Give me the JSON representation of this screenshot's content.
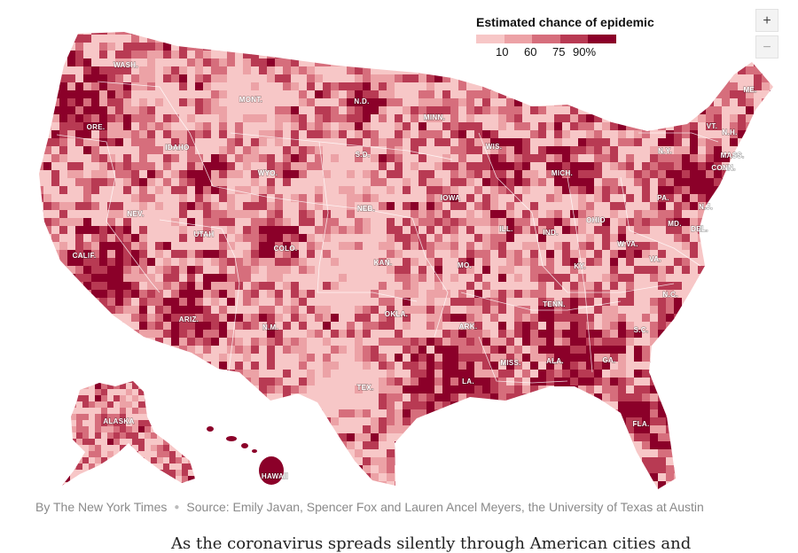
{
  "legend": {
    "title": "Estimated chance of epidemic",
    "ticks": [
      "10",
      "60",
      "75",
      "90%"
    ],
    "colors": [
      "#f7c7c7",
      "#eca2a6",
      "#d66e7c",
      "#b83a53",
      "#8b0029"
    ]
  },
  "zoom": {
    "in_label": "+",
    "out_label": "−"
  },
  "states": [
    {
      "label": "WASH."
    },
    {
      "label": "ORE."
    },
    {
      "label": "CALIF."
    },
    {
      "label": "NEV."
    },
    {
      "label": "IDAHO"
    },
    {
      "label": "MONT."
    },
    {
      "label": "WYO."
    },
    {
      "label": "UTAH"
    },
    {
      "label": "ARIZ."
    },
    {
      "label": "COLO."
    },
    {
      "label": "N.M."
    },
    {
      "label": "N.D."
    },
    {
      "label": "S.D."
    },
    {
      "label": "NEB."
    },
    {
      "label": "KAN."
    },
    {
      "label": "OKLA."
    },
    {
      "label": "TEX."
    },
    {
      "label": "MINN."
    },
    {
      "label": "IOWA"
    },
    {
      "label": "MO."
    },
    {
      "label": "ARK."
    },
    {
      "label": "LA."
    },
    {
      "label": "WIS."
    },
    {
      "label": "ILL."
    },
    {
      "label": "MICH."
    },
    {
      "label": "IND."
    },
    {
      "label": "OHIO"
    },
    {
      "label": "KY."
    },
    {
      "label": "TENN."
    },
    {
      "label": "MISS."
    },
    {
      "label": "ALA."
    },
    {
      "label": "GA."
    },
    {
      "label": "FLA."
    },
    {
      "label": "S.C."
    },
    {
      "label": "N.C."
    },
    {
      "label": "VA."
    },
    {
      "label": "W.VA."
    },
    {
      "label": "PA."
    },
    {
      "label": "N.Y."
    },
    {
      "label": "MD."
    },
    {
      "label": "DEL."
    },
    {
      "label": "N.J."
    },
    {
      "label": "CONN."
    },
    {
      "label": "MASS."
    },
    {
      "label": "VT."
    },
    {
      "label": "N.H."
    },
    {
      "label": "ME."
    },
    {
      "label": "ALASKA"
    },
    {
      "label": "HAWAII"
    }
  ],
  "credits": {
    "byline": "By The New York Times",
    "source": "Source: Emily Javan, Spencer Fox and Lauren Ancel Meyers, the University of Texas at Austin"
  },
  "article": {
    "first_line": "As the coronavirus spreads silently through American cities and"
  }
}
